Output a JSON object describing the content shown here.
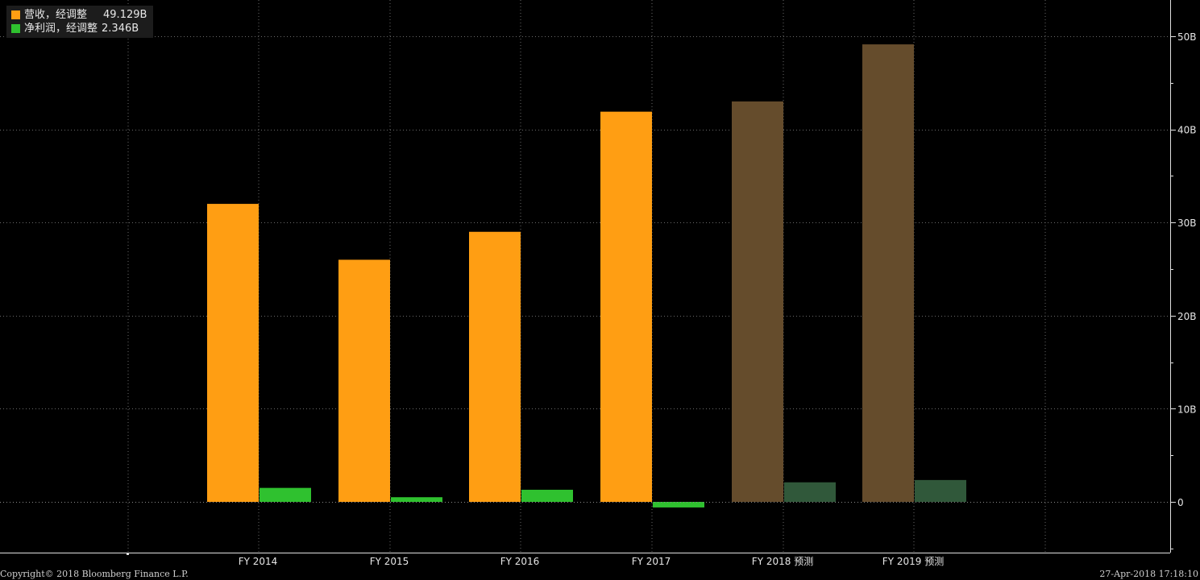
{
  "chart_data": {
    "type": "bar",
    "categories": [
      "FY 2014",
      "FY 2015",
      "FY 2016",
      "FY 2017",
      "FY 2018 预测",
      "FY 2019 预测"
    ],
    "series": [
      {
        "name": "营收, 经调整",
        "color": "#ff9e13",
        "forecast_color": "#654c2c",
        "values": [
          32.0,
          26.0,
          29.0,
          41.9,
          43.0,
          49.129
        ]
      },
      {
        "name": "净利润, 经调整",
        "color": "#2fc12f",
        "forecast_color": "#30583a",
        "values": [
          1.5,
          0.5,
          1.3,
          -0.6,
          2.1,
          2.346
        ]
      }
    ],
    "forecast_from_index": 4,
    "yaxis_side": "right",
    "yticks": [
      0,
      10,
      20,
      30,
      40,
      50
    ],
    "ytick_labels": [
      "0",
      "10B",
      "20B",
      "30B",
      "40B",
      "50B"
    ],
    "ylim": [
      -5.3,
      53.8
    ],
    "grid": true,
    "legend_placement": "top-left"
  },
  "legend": [
    {
      "label": "营收，经调整",
      "value": "49.129B",
      "color": "#ff9e13"
    },
    {
      "label": "净利润，经调整",
      "value": "2.346B",
      "color": "#2fc12f"
    }
  ],
  "footer": {
    "copyright": "Copyright© 2018 Bloomberg Finance L.P.",
    "timestamp": "27-Apr-2018 17:18:10"
  }
}
